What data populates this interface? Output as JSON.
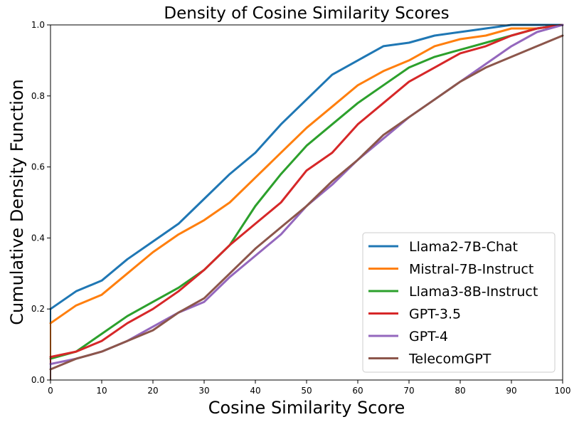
{
  "chart_data": {
    "type": "line",
    "title": "Density of Cosine Similarity Scores",
    "xlabel": "Cosine Similarity Score",
    "ylabel": "Cumulative Density Function",
    "xlim": [
      0,
      100
    ],
    "ylim": [
      0,
      1.0
    ],
    "xticks": [
      0,
      10,
      20,
      30,
      40,
      50,
      60,
      70,
      80,
      90,
      100
    ],
    "yticks": [
      0.0,
      0.2,
      0.4,
      0.6,
      0.8,
      1.0
    ],
    "xtick_labels": [
      "0",
      "10",
      "20",
      "30",
      "40",
      "50",
      "60",
      "70",
      "80",
      "90",
      "100"
    ],
    "ytick_labels": [
      "0.0",
      "0.2",
      "0.4",
      "0.6",
      "0.8",
      "1.0"
    ],
    "grid": false,
    "legend_position": "bottom-right",
    "x": [
      0,
      5,
      10,
      15,
      20,
      25,
      30,
      35,
      40,
      45,
      50,
      55,
      60,
      65,
      70,
      75,
      80,
      85,
      90,
      95,
      100
    ],
    "series": [
      {
        "name": "Llama2-7B-Chat",
        "color": "#1f77b4",
        "values": [
          0.2,
          0.25,
          0.28,
          0.34,
          0.39,
          0.44,
          0.51,
          0.58,
          0.64,
          0.72,
          0.79,
          0.86,
          0.9,
          0.94,
          0.95,
          0.97,
          0.98,
          0.99,
          1.0,
          1.0,
          1.0
        ]
      },
      {
        "name": "Mistral-7B-Instruct",
        "color": "#ff7f0e",
        "values": [
          0.16,
          0.21,
          0.24,
          0.3,
          0.36,
          0.41,
          0.45,
          0.5,
          0.57,
          0.64,
          0.71,
          0.77,
          0.83,
          0.87,
          0.9,
          0.94,
          0.96,
          0.97,
          0.99,
          0.99,
          1.0
        ]
      },
      {
        "name": "Llama3-8B-Instruct",
        "color": "#2ca02c",
        "values": [
          0.06,
          0.08,
          0.13,
          0.18,
          0.22,
          0.26,
          0.31,
          0.38,
          0.49,
          0.58,
          0.66,
          0.72,
          0.78,
          0.83,
          0.88,
          0.91,
          0.93,
          0.95,
          0.97,
          0.99,
          1.0
        ]
      },
      {
        "name": "GPT-3.5",
        "color": "#d62728",
        "values": [
          0.065,
          0.08,
          0.11,
          0.16,
          0.2,
          0.25,
          0.31,
          0.38,
          0.44,
          0.5,
          0.59,
          0.64,
          0.72,
          0.78,
          0.84,
          0.88,
          0.92,
          0.94,
          0.97,
          0.99,
          1.0
        ]
      },
      {
        "name": "GPT-4",
        "color": "#9467bd",
        "values": [
          0.045,
          0.06,
          0.08,
          0.11,
          0.15,
          0.19,
          0.22,
          0.29,
          0.35,
          0.41,
          0.49,
          0.55,
          0.62,
          0.68,
          0.74,
          0.79,
          0.84,
          0.89,
          0.94,
          0.98,
          1.0
        ]
      },
      {
        "name": "TelecomGPT",
        "color": "#8c564b",
        "values": [
          0.03,
          0.06,
          0.08,
          0.11,
          0.14,
          0.19,
          0.23,
          0.3,
          0.37,
          0.43,
          0.49,
          0.56,
          0.62,
          0.69,
          0.74,
          0.79,
          0.84,
          0.88,
          0.91,
          0.94,
          0.97
        ]
      }
    ]
  }
}
